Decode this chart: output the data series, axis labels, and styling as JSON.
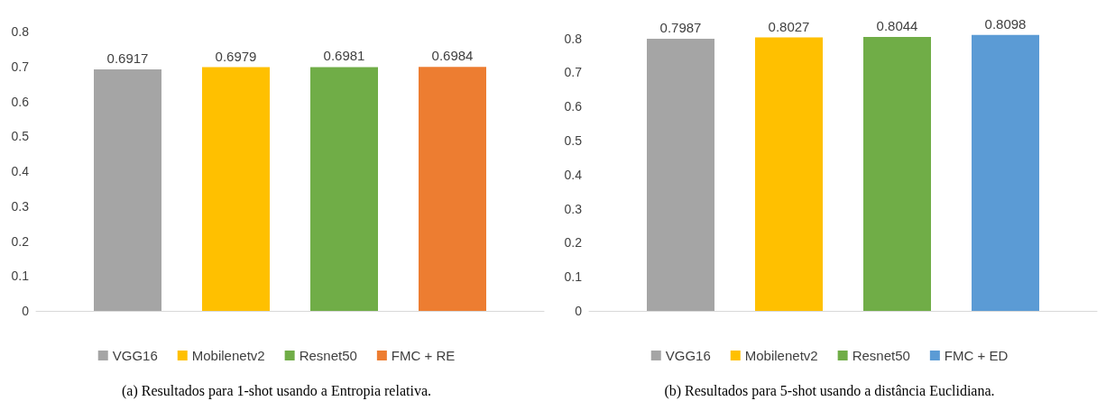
{
  "chart_data": [
    {
      "type": "bar",
      "categories": [
        null
      ],
      "series": [
        {
          "name": "VGG16",
          "color": "#a5a5a5",
          "values": [
            0.6917
          ]
        },
        {
          "name": "Mobilenetv2",
          "color": "#ffc000",
          "values": [
            0.6979
          ]
        },
        {
          "name": "Resnet50",
          "color": "#70ad47",
          "values": [
            0.6981
          ]
        },
        {
          "name": "FMC + RE",
          "color": "#ed7d31",
          "values": [
            0.6984
          ]
        }
      ],
      "ylim": [
        0,
        0.8
      ],
      "yticks": [
        0,
        0.1,
        0.2,
        0.3,
        0.4,
        0.5,
        0.6,
        0.7,
        0.8
      ],
      "grid": false,
      "legend": "bottom",
      "data_labels": true,
      "annotations": [
        "(a) Resultados para 1-shot usando a Entropia relativa."
      ]
    },
    {
      "type": "bar",
      "categories": [
        null
      ],
      "series": [
        {
          "name": "VGG16",
          "color": "#a5a5a5",
          "values": [
            0.7987
          ]
        },
        {
          "name": "Mobilenetv2",
          "color": "#ffc000",
          "values": [
            0.8027
          ]
        },
        {
          "name": "Resnet50",
          "color": "#70ad47",
          "values": [
            0.8044
          ]
        },
        {
          "name": "FMC + ED",
          "color": "#5b9bd5",
          "values": [
            0.8098
          ]
        }
      ],
      "ylim": [
        0,
        0.82
      ],
      "yticks": [
        0,
        0.1,
        0.2,
        0.3,
        0.4,
        0.5,
        0.6,
        0.7,
        0.8
      ],
      "grid": false,
      "legend": "bottom",
      "data_labels": true,
      "annotations": [
        "(b) Resultados para 5-shot usando a distância Euclidiana."
      ]
    }
  ]
}
